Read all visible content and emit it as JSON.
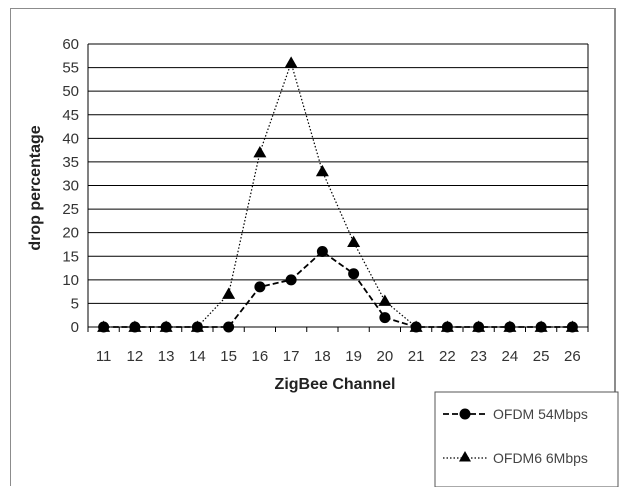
{
  "chart_data": {
    "type": "line",
    "title": "",
    "xlabel": "ZigBee Channel",
    "ylabel": "drop percentage",
    "x": [
      11,
      12,
      13,
      14,
      15,
      16,
      17,
      18,
      19,
      20,
      21,
      22,
      23,
      24,
      25,
      26
    ],
    "ylim": [
      0,
      60
    ],
    "yticks": [
      0,
      5,
      10,
      15,
      20,
      25,
      30,
      35,
      40,
      45,
      50,
      55,
      60
    ],
    "grid": true,
    "legend_position": "bottom-right",
    "series": [
      {
        "name": "OFDM 54Mbps",
        "marker": "circle",
        "line_style": "dashed",
        "color": "#000000",
        "values": [
          0,
          0,
          0,
          0,
          0,
          8.5,
          10,
          16,
          11.3,
          2,
          0,
          0,
          0,
          0,
          0,
          0
        ]
      },
      {
        "name": "OFDM6 6Mbps",
        "marker": "triangle",
        "line_style": "dotted",
        "color": "#000000",
        "values": [
          0,
          0,
          0,
          0,
          7,
          37,
          56,
          33,
          18,
          5.5,
          0,
          0,
          0,
          0,
          0,
          0
        ]
      }
    ]
  }
}
